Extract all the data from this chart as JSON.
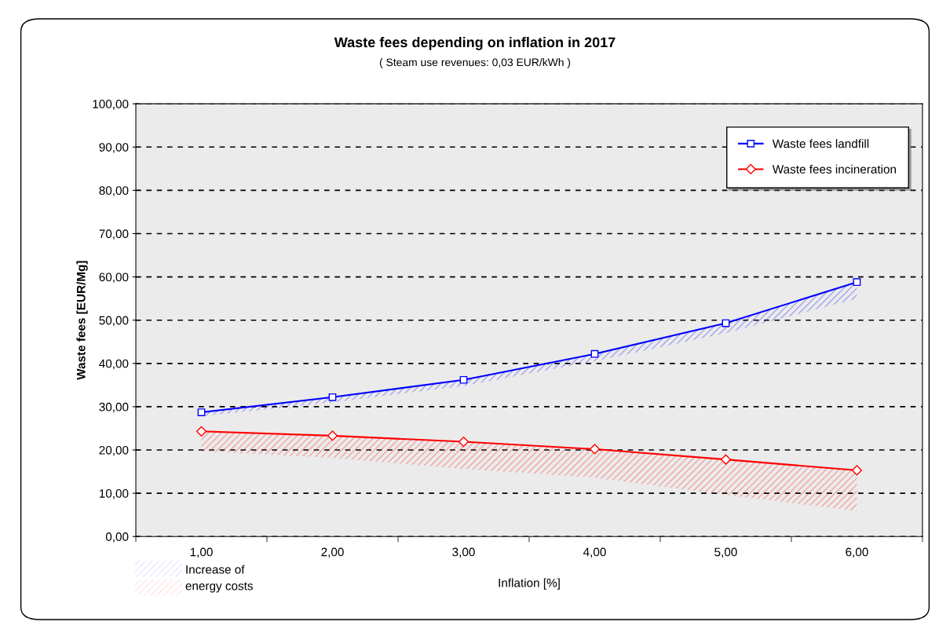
{
  "chart_data": {
    "type": "line",
    "title": "Waste fees depending on inflation in 2017",
    "subtitle": "( Steam use revenues: 0,03 EUR/kWh )",
    "xlabel": "Inflation [%]",
    "ylabel": "Waste fees [EUR/Mg]",
    "categories": [
      "1,00",
      "2,00",
      "3,00",
      "4,00",
      "5,00",
      "6,00"
    ],
    "series": [
      {
        "name": "Waste fees landfill",
        "color": "#0000ff",
        "marker": "square",
        "values": [
          28.7,
          32.2,
          36.2,
          42.2,
          49.3,
          58.8
        ],
        "lower": [
          27.8,
          31.0,
          34.8,
          40.5,
          47.0,
          55.0
        ],
        "upper": [
          28.7,
          32.2,
          36.2,
          42.2,
          49.3,
          58.8
        ]
      },
      {
        "name": "Waste fees incineration",
        "color": "#ff0000",
        "marker": "diamond",
        "values": [
          24.3,
          23.3,
          21.9,
          20.2,
          17.8,
          15.3
        ],
        "lower": [
          19.7,
          18.2,
          15.6,
          13.6,
          9.6,
          5.9
        ],
        "upper": [
          24.3,
          23.3,
          21.9,
          20.2,
          17.8,
          15.3
        ]
      }
    ],
    "ylim": [
      0,
      100
    ],
    "yticks": [
      {
        "value": 0,
        "label": "0,00"
      },
      {
        "value": 10,
        "label": "10,00"
      },
      {
        "value": 20,
        "label": "20,00"
      },
      {
        "value": 30,
        "label": "30,00"
      },
      {
        "value": 40,
        "label": "40,00"
      },
      {
        "value": 50,
        "label": "50,00"
      },
      {
        "value": 60,
        "label": "60,00"
      },
      {
        "value": 70,
        "label": "70,00"
      },
      {
        "value": 80,
        "label": "80,00"
      },
      {
        "value": 90,
        "label": "90,00"
      },
      {
        "value": 100,
        "label": "100,00"
      }
    ],
    "grid": "y",
    "legend": "top right",
    "line_style": "solid",
    "annotations": [
      "Increase of\nenergy costs"
    ]
  }
}
